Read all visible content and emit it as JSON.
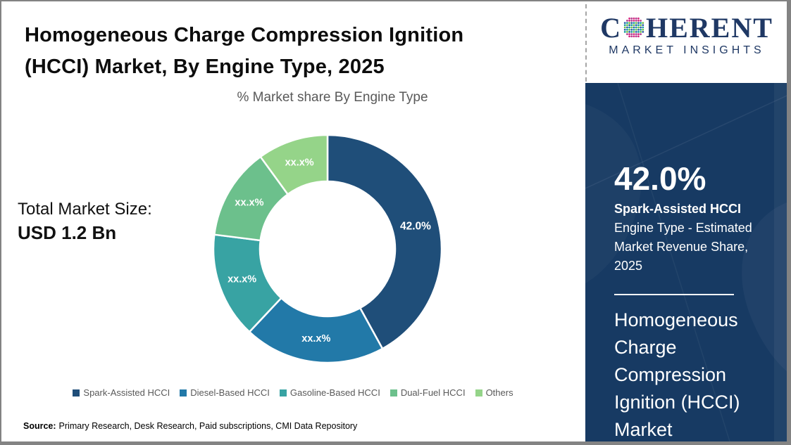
{
  "header": {
    "title_line1": "Homogeneous Charge Compression Ignition",
    "title_line2": "(HCCI) Market, By Engine Type, 2025",
    "subtitle": "% Market share By Engine Type"
  },
  "logo": {
    "brand_c": "C",
    "brand_rest": "HERENT",
    "tagline": "MARKET INSIGHTS"
  },
  "market_size": {
    "label": "Total Market Size:",
    "value": "USD 1.2 Bn"
  },
  "chart_data": {
    "type": "pie",
    "subtype": "donut",
    "title": "% Market share By Engine Type",
    "categories": [
      "Spark-Assisted HCCI",
      "Diesel-Based HCCI",
      "Gasoline-Based HCCI",
      "Dual-Fuel HCCI",
      "Others"
    ],
    "values": [
      42.0,
      20.0,
      15.0,
      13.0,
      10.0
    ],
    "display_labels": [
      "42.0%",
      "xx.x%",
      "xx.x%",
      "xx.x%",
      "xx.x%"
    ],
    "values_note": "Only the 42.0% slice is labeled in the figure; xx.x% slices are masked and their values are estimated from arc angles",
    "colors": [
      "#1F4E79",
      "#2279A8",
      "#38A3A3",
      "#6CC08C",
      "#95D489"
    ],
    "legend_position": "bottom",
    "start_angle_deg": 0,
    "direction": "clockwise"
  },
  "sidebar": {
    "stat_value": "42.0%",
    "stat_segment": "Spark-Assisted HCCI",
    "stat_description": "Engine Type - Estimated Market Revenue Share, 2025",
    "panel_title": "Homogeneous Charge Compression Ignition (HCCI) Market"
  },
  "source": {
    "label": "Source:",
    "text": "Primary Research, Desk Research, Paid subscriptions, CMI Data Repository"
  },
  "colors": {
    "sidebar_bg": "#173A63",
    "logo_navy": "#1F3864",
    "text_gray": "#595959",
    "border_gray": "#838383",
    "label_text": "#FFFFFF"
  }
}
